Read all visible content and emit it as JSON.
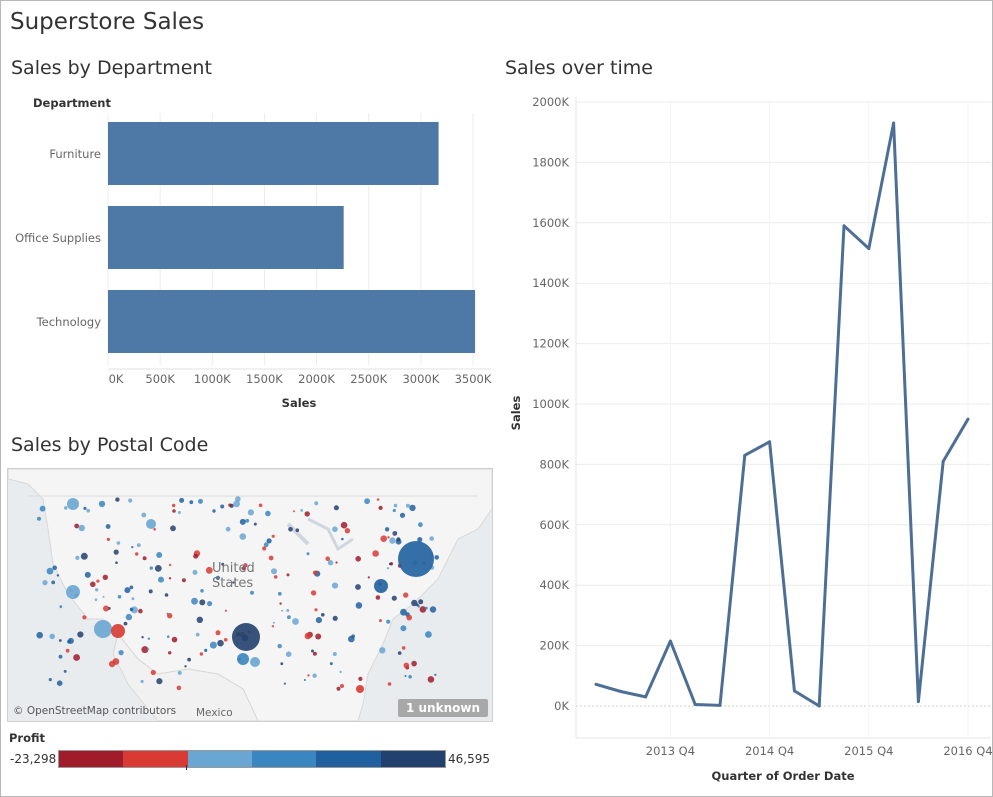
{
  "dashboard": {
    "title": "Superstore Sales"
  },
  "bar_section": {
    "title": "Sales by Department",
    "row_header": "Department",
    "xlabel": "Sales",
    "tick_labels": [
      "0K",
      "500K",
      "1000K",
      "1500K",
      "2000K",
      "2500K",
      "3000K",
      "3500K"
    ]
  },
  "line_section": {
    "title": "Sales over time",
    "ylabel": "Sales",
    "xlabel": "Quarter of Order Date",
    "y_tick_labels": [
      "0K",
      "200K",
      "400K",
      "600K",
      "800K",
      "1000K",
      "1200K",
      "1400K",
      "1600K",
      "1800K",
      "2000K"
    ],
    "x_tick_labels": [
      "2013 Q4",
      "2014 Q4",
      "2015 Q4",
      "2016 Q4"
    ]
  },
  "map_section": {
    "title": "Sales by Postal Code",
    "attribution": "© OpenStreetMap contributors",
    "label_country_line1": "United",
    "label_country_line2": "States",
    "label_mexico": "Mexico",
    "unknown_badge": "1 unknown",
    "legend_title": "Profit",
    "legend_min": "-23,298",
    "legend_max": "46,595",
    "legend_colors": [
      "#a01c2b",
      "#d93a34",
      "#6aa6d2",
      "#3a86c0",
      "#20609f",
      "#23416e"
    ]
  },
  "colors": {
    "bar": "#4e79a7",
    "line": "#4e6f95",
    "grid": "#ececec"
  },
  "chart_data": [
    {
      "type": "bar",
      "orientation": "horizontal",
      "title": "Sales by Department",
      "categories": [
        "Furniture",
        "Office Supplies",
        "Technology"
      ],
      "values": [
        3170000,
        2260000,
        3520000
      ],
      "xlabel": "Sales",
      "ylabel": "Department",
      "xlim": [
        0,
        3500000
      ],
      "grid": true
    },
    {
      "type": "line",
      "title": "Sales over time",
      "x": [
        "2013 Q1",
        "2013 Q2",
        "2013 Q3",
        "2013 Q4",
        "2014 Q1",
        "2014 Q2",
        "2014 Q3",
        "2014 Q4",
        "2015 Q1",
        "2015 Q2",
        "2015 Q3",
        "2015 Q4",
        "2016 Q1",
        "2016 Q2",
        "2016 Q3",
        "2016 Q4"
      ],
      "values": [
        72000,
        48000,
        30000,
        215000,
        5000,
        2000,
        830000,
        875000,
        50000,
        0,
        1590000,
        1515000,
        1930000,
        15000,
        810000,
        950000
      ],
      "xlabel": "Quarter of Order Date",
      "ylabel": "Sales",
      "ylim": [
        0,
        2000000
      ],
      "grid": true
    }
  ]
}
